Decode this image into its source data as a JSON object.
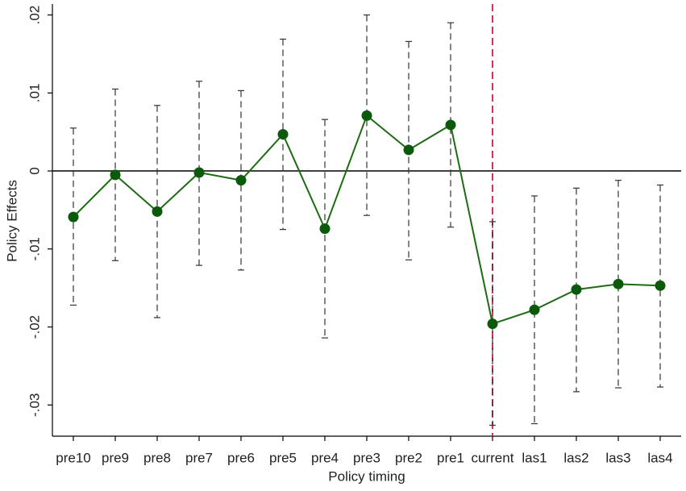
{
  "chart_data": {
    "type": "errorbar-line",
    "x_label": "Policy timing",
    "y_label": "Policy Effects",
    "categories": [
      "pre10",
      "pre9",
      "pre8",
      "pre7",
      "pre6",
      "pre5",
      "pre4",
      "pre3",
      "pre2",
      "pre1",
      "current",
      "las1",
      "las2",
      "las3",
      "las4"
    ],
    "series": [
      {
        "name": "Policy Effects",
        "color": "#1e6b14",
        "marker_color": "#0b5a0b",
        "values": [
          -0.0059,
          -0.0005,
          -0.0052,
          -0.0002,
          -0.0012,
          0.0047,
          -0.0074,
          0.0071,
          0.0027,
          0.0059,
          -0.0196,
          -0.0178,
          -0.0152,
          -0.0145,
          -0.0147
        ],
        "ci_low": [
          -0.0172,
          -0.0115,
          -0.0188,
          -0.0121,
          -0.0127,
          -0.0075,
          -0.0214,
          -0.0057,
          -0.0114,
          -0.0072,
          -0.0326,
          -0.0324,
          -0.0283,
          -0.0278,
          -0.0277
        ],
        "ci_high": [
          0.0055,
          0.0105,
          0.0084,
          0.0115,
          0.0103,
          0.0169,
          0.0066,
          0.02,
          0.0166,
          0.019,
          -0.0065,
          -0.0032,
          -0.0022,
          -0.0012,
          -0.0018
        ]
      }
    ],
    "ylim": [
      -0.034,
      0.0214
    ],
    "yticks": [
      {
        "value": -0.03,
        "label": "-.03"
      },
      {
        "value": -0.02,
        "label": "-.02"
      },
      {
        "value": -0.01,
        "label": "-.01"
      },
      0,
      {
        "value": 0.01,
        "label": ".01"
      },
      {
        "value": 0.02,
        "label": ".02"
      }
    ],
    "yline": 0,
    "yline_color": "#000000",
    "xline_category": 10,
    "xline_color": "#c8365a"
  }
}
